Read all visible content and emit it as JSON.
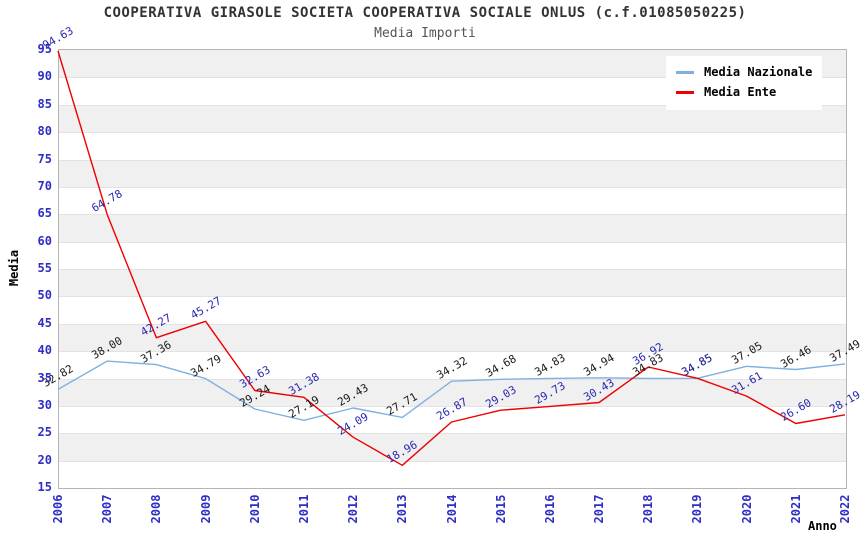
{
  "chart_data": {
    "type": "line",
    "title": "COOPERATIVA GIRASOLE SOCIETA COOPERATIVA SOCIALE ONLUS (c.f.01085050225)",
    "subtitle": "Media Importi",
    "xlabel": "Anno",
    "ylabel": "Media",
    "x": [
      2006,
      2007,
      2008,
      2009,
      2010,
      2011,
      2012,
      2013,
      2014,
      2015,
      2016,
      2017,
      2018,
      2019,
      2020,
      2021,
      2022
    ],
    "ylim": [
      15,
      95
    ],
    "yticks": [
      15,
      20,
      25,
      30,
      35,
      40,
      45,
      50,
      55,
      60,
      65,
      70,
      75,
      80,
      85,
      90,
      95
    ],
    "grid": "alternating-horizontal-bands",
    "legend_position": "top-right",
    "series": [
      {
        "name": "Media Nazionale",
        "color": "#7fb1e0",
        "label_color": "#1a1a1a",
        "values": [
          32.82,
          38.0,
          37.36,
          34.79,
          29.24,
          27.19,
          29.43,
          27.71,
          34.32,
          34.68,
          34.83,
          34.94,
          34.83,
          34.85,
          37.05,
          36.46,
          37.49
        ]
      },
      {
        "name": "Media Ente",
        "color": "#ee0000",
        "label_color": "#2929b0",
        "values": [
          94.63,
          64.78,
          42.27,
          45.27,
          32.63,
          31.38,
          24.09,
          18.96,
          26.87,
          29.03,
          29.73,
          30.43,
          36.92,
          34.85,
          31.61,
          26.6,
          28.19
        ]
      }
    ],
    "colors": {
      "band_gray": "#f0f0f0",
      "band_white": "#ffffff",
      "gridline": "#e3e3e3",
      "plot_border": "#b4b4b4",
      "tick_text": "#2e2ec4",
      "title_text": "#333333",
      "subtitle_text": "#555555"
    }
  }
}
